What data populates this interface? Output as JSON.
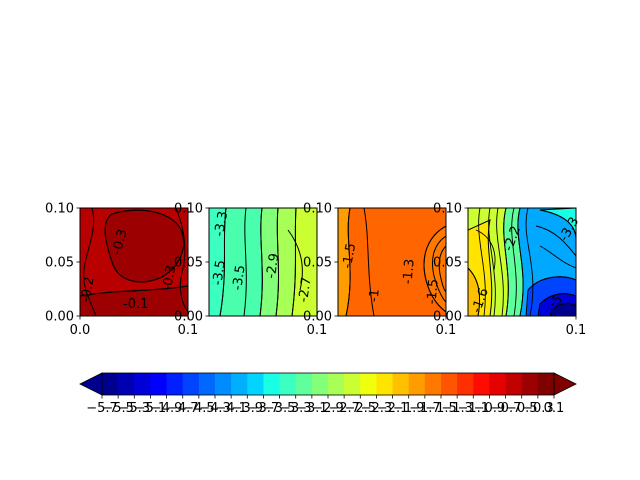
{
  "chart_data": {
    "type": "contour",
    "panels": [
      {
        "name": "",
        "xlim": [
          0.0,
          0.1
        ],
        "ylim": [
          0.0,
          0.1
        ],
        "xticks": [
          "0.0",
          "0.1"
        ],
        "yticks": [
          "0.00",
          "0.05",
          "0.10"
        ],
        "fill_level": -0.2,
        "fill_color": "#b80000",
        "contour_labels": [
          "-0.3",
          "-0.3",
          "-0.1",
          "-0.2"
        ]
      },
      {
        "name": "",
        "xlim": [
          0.0,
          0.1
        ],
        "ylim": [
          0.0,
          0.1
        ],
        "xticks": [
          "0.1"
        ],
        "yticks": [
          "0.00",
          "0.05",
          "0.10"
        ],
        "fill_level": -2.9,
        "fill_color": "#49ffad",
        "contour_labels": [
          "-3.3",
          "-2.9",
          "-2.7",
          "-3.5",
          "-3.5"
        ]
      },
      {
        "name": "",
        "xlim": [
          0.0,
          0.1
        ],
        "ylim": [
          0.0,
          0.1
        ],
        "xticks": [
          "0.1"
        ],
        "yticks": [
          "0.00",
          "0.05",
          "0.10"
        ],
        "fill_level": -1.3,
        "fill_color": "#ff6600",
        "contour_labels": [
          "-1.5",
          "-1.3",
          "-1.5",
          "-1"
        ]
      },
      {
        "name": "",
        "xlim": [
          0.0,
          0.1
        ],
        "ylim": [
          0.0,
          0.1
        ],
        "xticks": [
          "0.1"
        ],
        "yticks": [
          "0.00",
          "0.05",
          "0.10"
        ],
        "fill_level": -3.5,
        "fill_color": "#00a8ff",
        "contour_labels": [
          "-2.2",
          "-3.3",
          "-1.6",
          "-5"
        ]
      }
    ],
    "colorbar": {
      "levels": [
        -5.7,
        -5.5,
        -5.3,
        -5.1,
        -4.9,
        -4.7,
        -4.5,
        -4.3,
        -4.1,
        -3.9,
        -3.7,
        -3.5,
        -3.3,
        -3.1,
        -2.9,
        -2.7,
        -2.5,
        -2.3,
        -2.1,
        -1.9,
        -1.7,
        -1.5,
        -1.3,
        -1.1,
        -0.9,
        -0.7,
        -0.5,
        -0.3,
        0.1
      ],
      "tick_labels": [
        "−5.7",
        "−5.5",
        "−5.3",
        "−5.1",
        "−4.9",
        "−4.7",
        "−4.5",
        "−4.3",
        "−4.1",
        "−3.9",
        "−3.7",
        "−3.5",
        "−3.3",
        "−3.1",
        "−2.9",
        "−2.7",
        "−2.5",
        "−2.3",
        "−2.1",
        "−1.9",
        "−1.7",
        "−1.5",
        "−1.3",
        "−1.1",
        "−0.9",
        "−0.7",
        "−0.5",
        "−0.3",
        "0.1"
      ],
      "colors": [
        "#00008f",
        "#0000b3",
        "#0000d8",
        "#0000ff",
        "#0020ff",
        "#0044ff",
        "#0068ff",
        "#008cff",
        "#00b0ff",
        "#00d4ff",
        "#18ffe6",
        "#3cffc2",
        "#60ff9e",
        "#84ff7a",
        "#a8ff56",
        "#ccff32",
        "#f0ff0e",
        "#ffe400",
        "#ffc000",
        "#ff9c00",
        "#ff7800",
        "#ff5400",
        "#ff3000",
        "#ff0c00",
        "#e60000",
        "#c10000",
        "#9c0000",
        "#800000"
      ],
      "extend": "both",
      "orientation": "horizontal"
    }
  }
}
